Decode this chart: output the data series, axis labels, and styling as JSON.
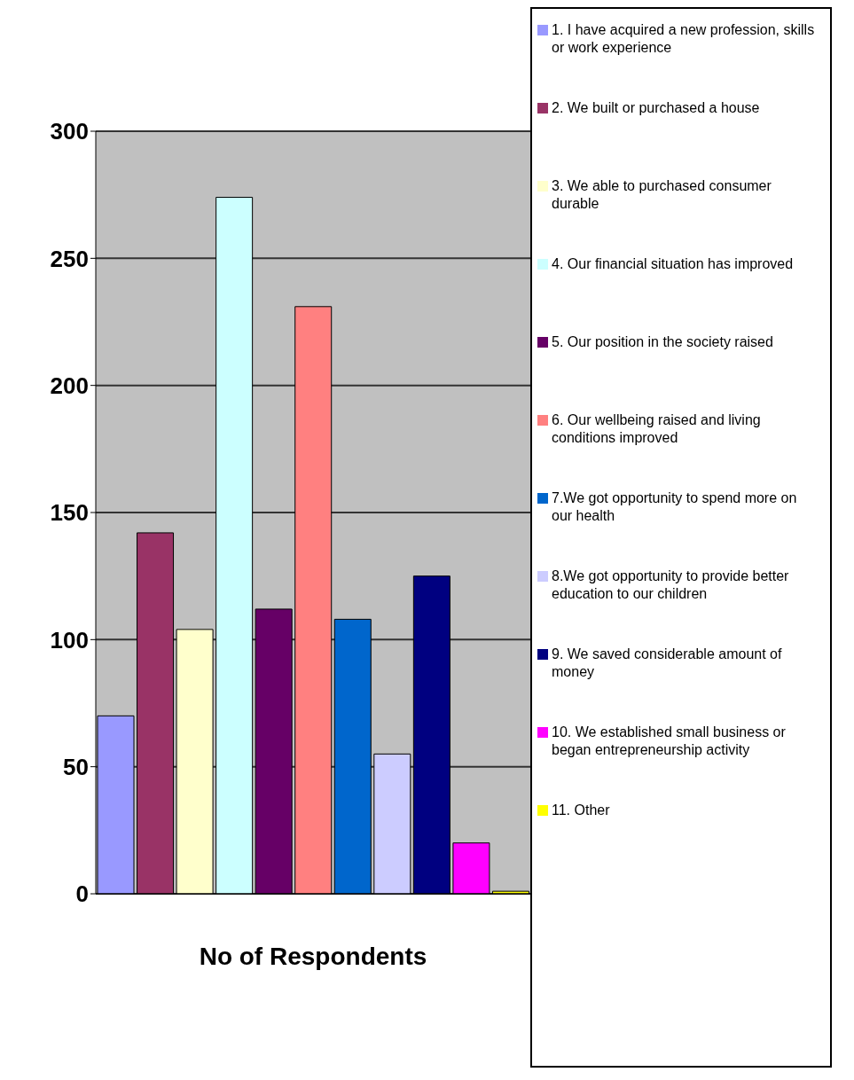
{
  "chart_data": {
    "type": "bar",
    "xlabel": "No of Respondents",
    "categories": [
      null,
      null,
      null,
      null,
      null,
      null,
      null,
      null,
      null,
      null,
      null
    ],
    "series": [
      {
        "name": "1. I have acquired a new profession, skills or work experience",
        "color": "#9999ff",
        "values": [
          70,
          null,
          null,
          null,
          null,
          null,
          null,
          null,
          null,
          null,
          null
        ]
      },
      {
        "name": "2. We built or purchased a house",
        "color": "#993366",
        "values": [
          null,
          142,
          null,
          null,
          null,
          null,
          null,
          null,
          null,
          null,
          null
        ]
      },
      {
        "name": "3. We able to purchased consumer durable",
        "color": "#ffffcc",
        "values": [
          null,
          null,
          104,
          null,
          null,
          null,
          null,
          null,
          null,
          null,
          null
        ]
      },
      {
        "name": "4. Our financial situation has improved",
        "color": "#ccffff",
        "values": [
          null,
          null,
          null,
          274,
          null,
          null,
          null,
          null,
          null,
          null,
          null
        ]
      },
      {
        "name": "5. Our position in the society raised",
        "color": "#660066",
        "values": [
          null,
          null,
          null,
          null,
          112,
          null,
          null,
          null,
          null,
          null,
          null
        ]
      },
      {
        "name": "6. Our wellbeing raised and living conditions improved",
        "color": "#ff8080",
        "values": [
          null,
          null,
          null,
          null,
          null,
          231,
          null,
          null,
          null,
          null,
          null
        ]
      },
      {
        "name": "7.We got opportunity to spend more on our health",
        "color": "#0066cc",
        "values": [
          null,
          null,
          null,
          null,
          null,
          null,
          108,
          null,
          null,
          null,
          null
        ]
      },
      {
        "name": "8.We got opportunity to provide better education to our children",
        "color": "#ccccff",
        "values": [
          null,
          null,
          null,
          null,
          null,
          null,
          null,
          55,
          null,
          null,
          null
        ]
      },
      {
        "name": "9. We saved considerable amount of money",
        "color": "#000080",
        "values": [
          null,
          null,
          null,
          null,
          null,
          null,
          null,
          null,
          125,
          null,
          null
        ]
      },
      {
        "name": "10. We established small business or began entrepreneurship activity",
        "color": "#ff00ff",
        "values": [
          null,
          null,
          null,
          null,
          null,
          null,
          null,
          null,
          null,
          20,
          null
        ]
      },
      {
        "name": "11. Other",
        "color": "#ffff00",
        "values": [
          null,
          null,
          null,
          null,
          null,
          null,
          null,
          null,
          null,
          null,
          1
        ]
      }
    ],
    "ylim": [
      0,
      300
    ],
    "yticks": [
      0,
      50,
      100,
      150,
      200,
      250,
      300
    ],
    "grid": "y",
    "legend": "right"
  }
}
